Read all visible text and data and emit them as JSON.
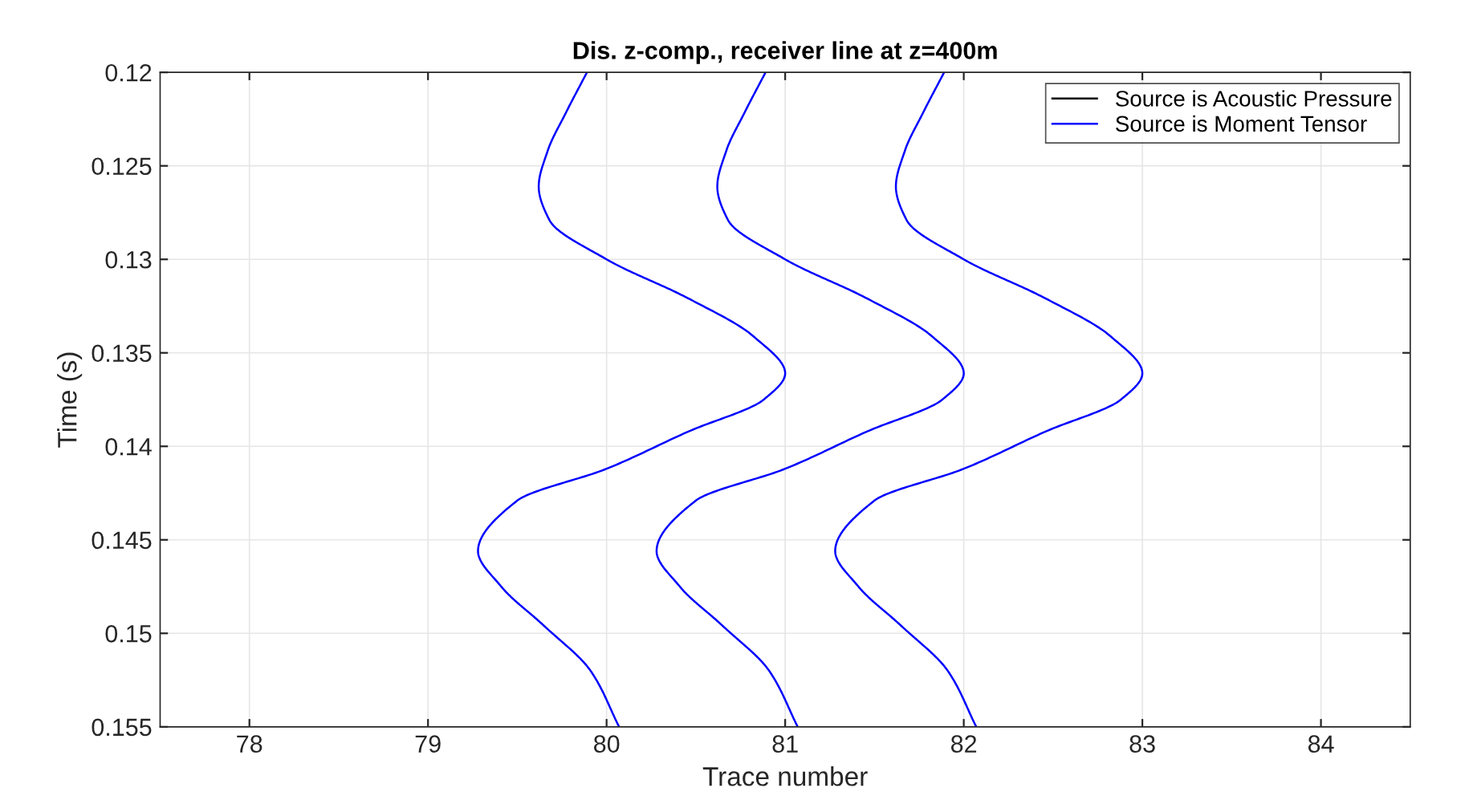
{
  "chart_data": {
    "type": "line",
    "title": "Dis. z-comp., receiver line at z=400m",
    "xlabel": "Trace number",
    "ylabel": "Time (s)",
    "xlim": [
      77.5,
      84.5
    ],
    "xticks": [
      78,
      79,
      80,
      81,
      82,
      83,
      84
    ],
    "ylim": [
      0.155,
      0.12
    ],
    "yticks": [
      0.12,
      0.125,
      0.13,
      0.135,
      0.14,
      0.145,
      0.15,
      0.155
    ],
    "grid": true,
    "legend": "top right",
    "line_style": "solid",
    "marker": "none",
    "series": [
      {
        "name": "Source is Acoustic Pressure",
        "color": "#000000"
      },
      {
        "name": "Source is Moment Tensor",
        "color": "#0000ff",
        "x": [
          79.89,
          79.77,
          79.67,
          79.62,
          79.68,
          80.0,
          80.46,
          80.82,
          81.0,
          80.88,
          80.46,
          80.0,
          79.5,
          79.28,
          79.41,
          79.65,
          79.91,
          80.07
        ],
        "values": [
          0.12,
          0.1222,
          0.1242,
          0.1261,
          0.1279,
          0.13,
          0.1321,
          0.1341,
          0.1361,
          0.1375,
          0.1392,
          0.1412,
          0.1429,
          0.1456,
          0.1475,
          0.1496,
          0.152,
          0.155
        ]
      },
      {
        "color": "#0000ff",
        "x": [
          80.89,
          80.77,
          80.67,
          80.62,
          80.68,
          81.0,
          81.46,
          81.82,
          82.0,
          81.88,
          81.46,
          81.0,
          80.5,
          80.28,
          80.41,
          80.65,
          80.91,
          81.07
        ],
        "values": [
          0.12,
          0.1222,
          0.1242,
          0.1261,
          0.1279,
          0.13,
          0.1321,
          0.1341,
          0.1361,
          0.1375,
          0.1392,
          0.1412,
          0.1429,
          0.1456,
          0.1475,
          0.1496,
          0.152,
          0.155
        ]
      },
      {
        "color": "#0000ff",
        "x": [
          81.89,
          81.77,
          81.67,
          81.62,
          81.68,
          82.0,
          82.46,
          82.82,
          83.0,
          82.88,
          82.46,
          82.0,
          81.5,
          81.28,
          81.41,
          81.65,
          81.91,
          82.07
        ],
        "values": [
          0.12,
          0.1222,
          0.1242,
          0.1261,
          0.1279,
          0.13,
          0.1321,
          0.1341,
          0.1361,
          0.1375,
          0.1392,
          0.1412,
          0.1429,
          0.1456,
          0.1475,
          0.1496,
          0.152,
          0.155
        ]
      }
    ]
  }
}
